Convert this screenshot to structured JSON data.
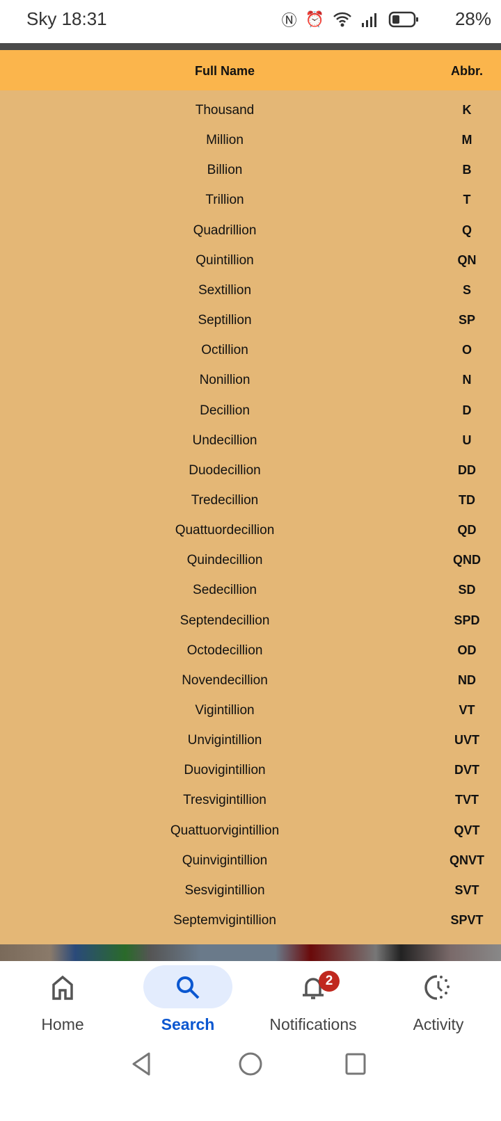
{
  "status_bar": {
    "carrier_time": "Sky 18:31",
    "battery": "28%"
  },
  "table": {
    "headers": {
      "full_name": "Full Name",
      "abbr": "Abbr."
    },
    "header_color": "#fbb54c",
    "body_color": "#e4b776",
    "rows": [
      [
        "Thousand",
        "K"
      ],
      [
        "Million",
        "M"
      ],
      [
        "Billion",
        "B"
      ],
      [
        "Trillion",
        "T"
      ],
      [
        "Quadrillion",
        "Q"
      ],
      [
        "Quintillion",
        "QN"
      ],
      [
        "Sextillion",
        "S"
      ],
      [
        "Septillion",
        "SP"
      ],
      [
        "Octillion",
        "O"
      ],
      [
        "Nonillion",
        "N"
      ],
      [
        "Decillion",
        "D"
      ],
      [
        "Undecillion",
        "U"
      ],
      [
        "Duodecillion",
        "DD"
      ],
      [
        "Tredecillion",
        "TD"
      ],
      [
        "Quattuordecillion",
        "QD"
      ],
      [
        "Quindecillion",
        "QND"
      ],
      [
        "Sedecillion",
        "SD"
      ],
      [
        "Septendecillion",
        "SPD"
      ],
      [
        "Octodecillion",
        "OD"
      ],
      [
        "Novendecillion",
        "ND"
      ],
      [
        "Vigintillion",
        "VT"
      ],
      [
        "Unvigintillion",
        "UVT"
      ],
      [
        "Duovigintillion",
        "DVT"
      ],
      [
        "Tresvigintillion",
        "TVT"
      ],
      [
        "Quattuorvigintillion",
        "QVT"
      ],
      [
        "Quinvigintillion",
        "QNVT"
      ],
      [
        "Sesvigintillion",
        "SVT"
      ],
      [
        "Septemvigintillion",
        "SPVT"
      ]
    ]
  },
  "bottom_nav": {
    "items": [
      {
        "label": "Home",
        "icon": "home-icon"
      },
      {
        "label": "Search",
        "icon": "search-icon",
        "active": true
      },
      {
        "label": "Notifications",
        "icon": "bell-icon",
        "badge": "2"
      },
      {
        "label": "Activity",
        "icon": "activity-icon"
      }
    ],
    "active_color": "#0b57d0",
    "pill_color": "#e3ecfd"
  }
}
